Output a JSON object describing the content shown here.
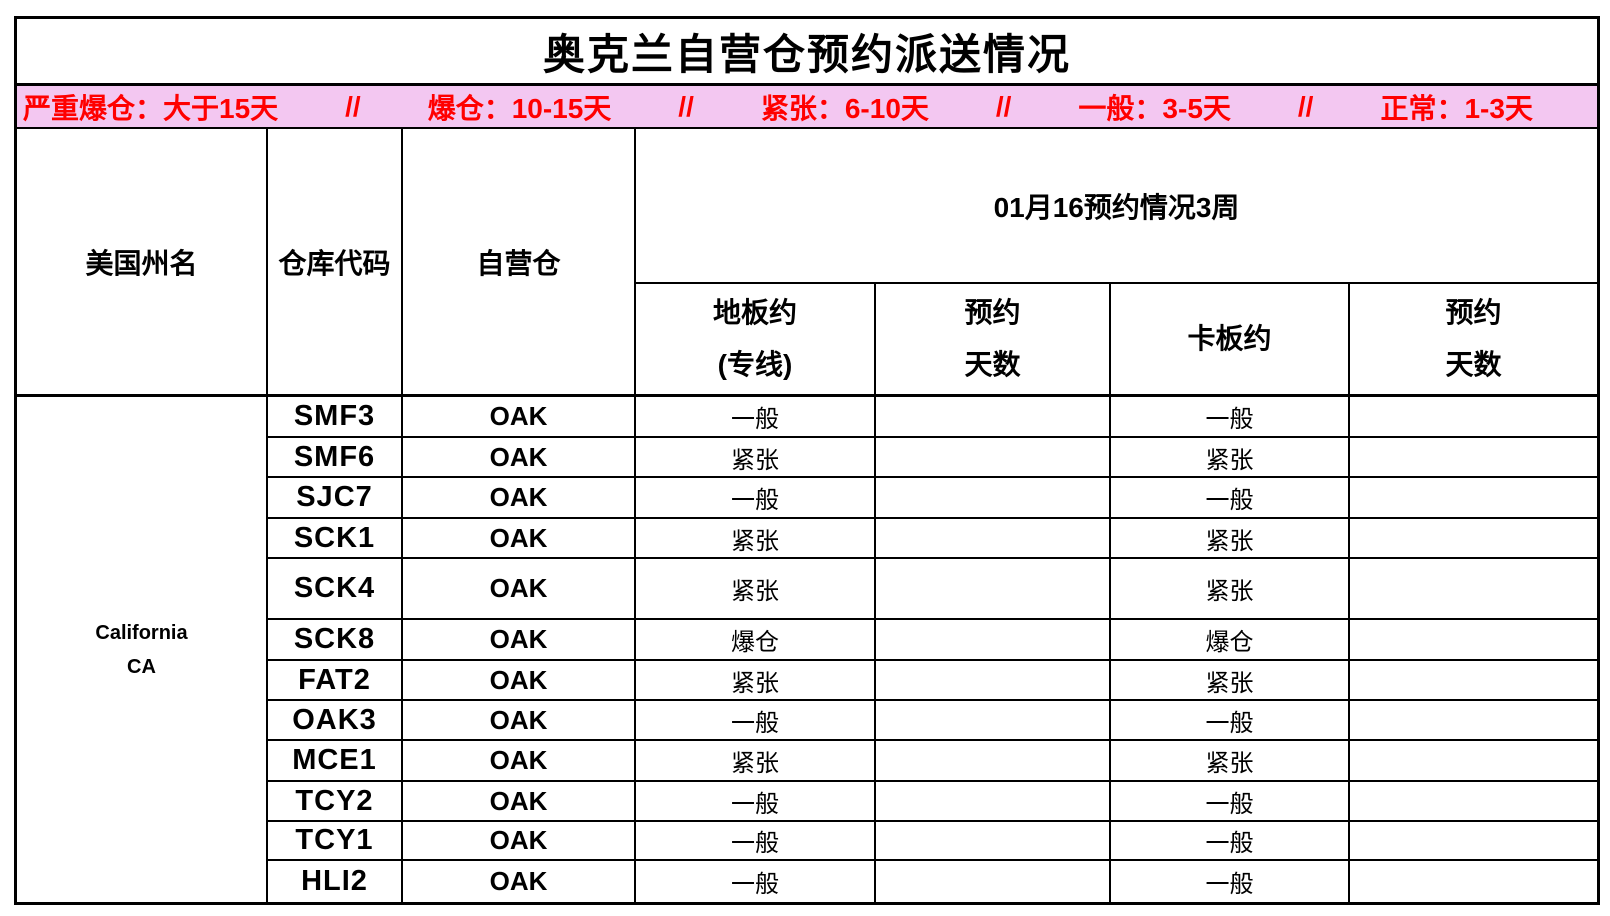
{
  "title": "奥克兰自营仓预约派送情况",
  "legend": {
    "background": "#F3C7F1",
    "text_color": "#FF0000",
    "items": [
      "严重爆仓：大于15天",
      "//",
      "爆仓：10-15天",
      "//",
      "紧张：6-10天",
      "//",
      "一般：3-5天",
      "//",
      "正常：1-3天"
    ]
  },
  "header": {
    "state": "美国州名",
    "warehouse_code": "仓库代码",
    "self_warehouse": "自营仓",
    "period_title": "01月16预约情况3周",
    "floor_line1": "地板约",
    "floor_line2": "(专线)",
    "days_line1": "预约",
    "days_line2": "天数",
    "pallet": "卡板约"
  },
  "state_cell": {
    "line1": "California",
    "line2": "CA"
  },
  "rows": [
    {
      "code": "SMF3",
      "warehouse": "OAK",
      "floor_status": "一般",
      "floor_days": "",
      "pallet_status": "一般",
      "pallet_days": ""
    },
    {
      "code": "SMF6",
      "warehouse": "OAK",
      "floor_status": "紧张",
      "floor_days": "",
      "pallet_status": "紧张",
      "pallet_days": ""
    },
    {
      "code": "SJC7",
      "warehouse": "OAK",
      "floor_status": "一般",
      "floor_days": "",
      "pallet_status": "一般",
      "pallet_days": ""
    },
    {
      "code": "SCK1",
      "warehouse": "OAK",
      "floor_status": "紧张",
      "floor_days": "",
      "pallet_status": "紧张",
      "pallet_days": ""
    },
    {
      "code": "SCK4",
      "warehouse": "OAK",
      "floor_status": "紧张",
      "floor_days": "",
      "pallet_status": "紧张",
      "pallet_days": ""
    },
    {
      "code": "SCK8",
      "warehouse": "OAK",
      "floor_status": "爆仓",
      "floor_days": "",
      "pallet_status": "爆仓",
      "pallet_days": ""
    },
    {
      "code": "FAT2",
      "warehouse": "OAK",
      "floor_status": "紧张",
      "floor_days": "",
      "pallet_status": "紧张",
      "pallet_days": ""
    },
    {
      "code": "OAK3",
      "warehouse": "OAK",
      "floor_status": "一般",
      "floor_days": "",
      "pallet_status": "一般",
      "pallet_days": ""
    },
    {
      "code": "MCE1",
      "warehouse": "OAK",
      "floor_status": "紧张",
      "floor_days": "",
      "pallet_status": "紧张",
      "pallet_days": ""
    },
    {
      "code": "TCY2",
      "warehouse": "OAK",
      "floor_status": "一般",
      "floor_days": "",
      "pallet_status": "一般",
      "pallet_days": ""
    },
    {
      "code": "TCY1",
      "warehouse": "OAK",
      "floor_status": "一般",
      "floor_days": "",
      "pallet_status": "一般",
      "pallet_days": ""
    },
    {
      "code": "HLI2",
      "warehouse": "OAK",
      "floor_status": "一般",
      "floor_days": "",
      "pallet_status": "一般",
      "pallet_days": ""
    }
  ]
}
